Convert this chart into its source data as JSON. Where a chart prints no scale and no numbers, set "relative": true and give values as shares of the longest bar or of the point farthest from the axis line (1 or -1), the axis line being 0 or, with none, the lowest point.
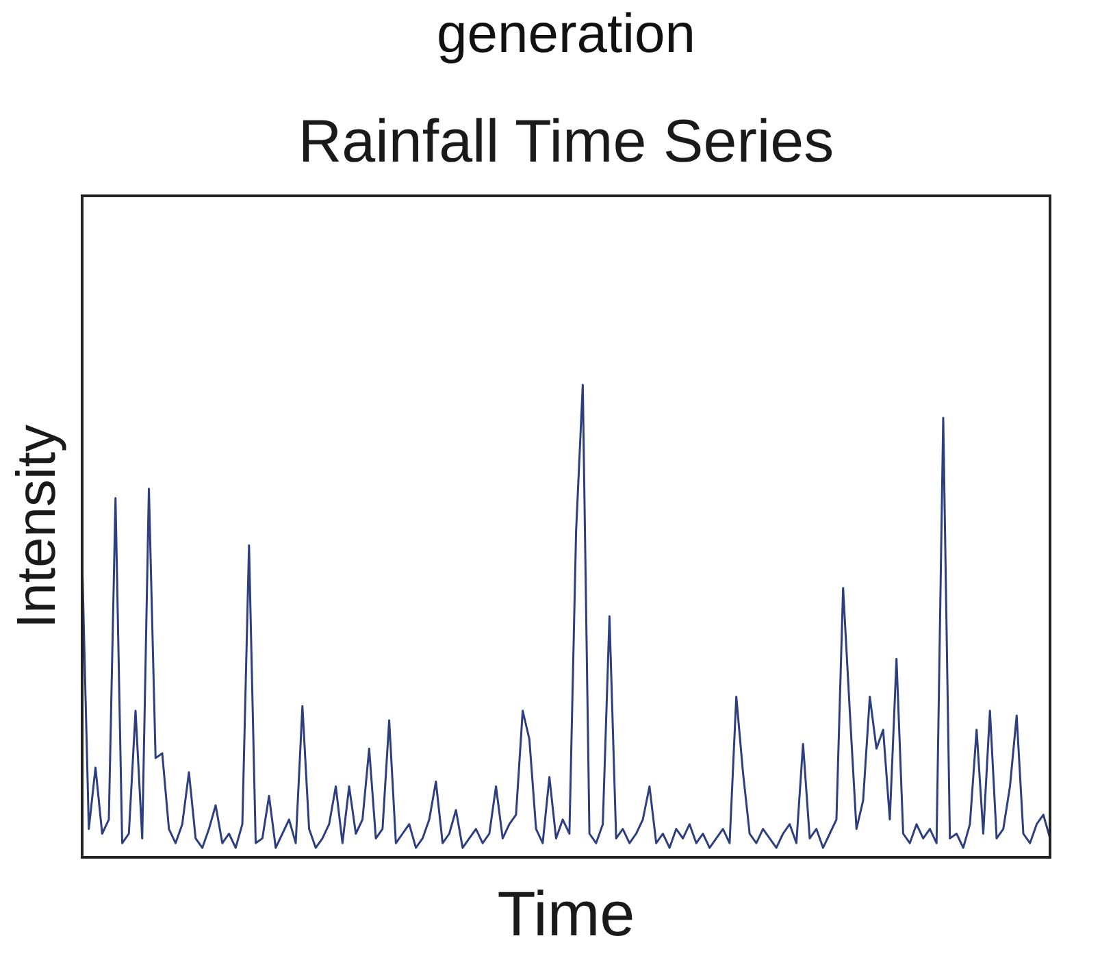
{
  "chart_data": {
    "type": "line",
    "title": "Rainfall Time Series",
    "xlabel": "Time",
    "ylabel": "Intensity",
    "annotations": [
      "generation"
    ],
    "relative": true,
    "categories": [
      null,
      null,
      null,
      null,
      null,
      null,
      null,
      null,
      null,
      null,
      null,
      null,
      null,
      null,
      null,
      null,
      null,
      null,
      null,
      null,
      null,
      null,
      null,
      null,
      null,
      null,
      null,
      null,
      null,
      null,
      null,
      null,
      null,
      null,
      null,
      null,
      null,
      null,
      null,
      null,
      null,
      null,
      null,
      null,
      null,
      null,
      null,
      null,
      null,
      null,
      null,
      null,
      null,
      null,
      null,
      null,
      null,
      null,
      null,
      null,
      null,
      null,
      null,
      null,
      null,
      null,
      null,
      null,
      null,
      null,
      null,
      null,
      null,
      null,
      null,
      null,
      null,
      null,
      null,
      null,
      null,
      null,
      null,
      null,
      null,
      null,
      null,
      null,
      null,
      null,
      null,
      null,
      null,
      null,
      null,
      null,
      null,
      null,
      null,
      null,
      null,
      null,
      null,
      null,
      null,
      null,
      null,
      null,
      null,
      null,
      null,
      null,
      null,
      null,
      null,
      null,
      null,
      null,
      null,
      null,
      null,
      null,
      null,
      null,
      null,
      null,
      null,
      null,
      null,
      null,
      null,
      null,
      null,
      null,
      null,
      null,
      null,
      null,
      null,
      null,
      null,
      null,
      null,
      null,
      null,
      null
    ],
    "series": [
      {
        "color": "#2e3f7f",
        "values": [
          0.63,
          0.06,
          0.19,
          0.05,
          0.08,
          0.76,
          0.03,
          0.05,
          0.31,
          0.04,
          0.78,
          0.21,
          0.22,
          0.06,
          0.03,
          0.07,
          0.18,
          0.04,
          0.02,
          0.06,
          0.11,
          0.03,
          0.05,
          0.02,
          0.07,
          0.66,
          0.03,
          0.04,
          0.13,
          0.02,
          0.05,
          0.08,
          0.03,
          0.32,
          0.06,
          0.02,
          0.04,
          0.07,
          0.15,
          0.03,
          0.15,
          0.05,
          0.08,
          0.23,
          0.04,
          0.06,
          0.29,
          0.03,
          0.05,
          0.07,
          0.02,
          0.04,
          0.08,
          0.16,
          0.03,
          0.05,
          0.1,
          0.02,
          0.04,
          0.06,
          0.03,
          0.05,
          0.15,
          0.04,
          0.07,
          0.09,
          0.31,
          0.25,
          0.06,
          0.03,
          0.17,
          0.04,
          0.08,
          0.05,
          0.69,
          1,
          0.05,
          0.03,
          0.07,
          0.51,
          0.04,
          0.06,
          0.03,
          0.05,
          0.08,
          0.15,
          0.03,
          0.05,
          0.02,
          0.06,
          0.04,
          0.07,
          0.03,
          0.05,
          0.02,
          0.04,
          0.06,
          0.03,
          0.34,
          0.18,
          0.05,
          0.03,
          0.06,
          0.04,
          0.02,
          0.05,
          0.07,
          0.03,
          0.24,
          0.04,
          0.06,
          0.02,
          0.05,
          0.08,
          0.57,
          0.31,
          0.06,
          0.12,
          0.34,
          0.23,
          0.27,
          0.08,
          0.42,
          0.05,
          0.03,
          0.07,
          0.04,
          0.06,
          0.03,
          0.93,
          0.04,
          0.05,
          0.02,
          0.07,
          0.27,
          0.05,
          0.31,
          0.04,
          0.06,
          0.15,
          0.3,
          0.05,
          0.03,
          0.07,
          0.09,
          0.04
        ]
      }
    ]
  }
}
